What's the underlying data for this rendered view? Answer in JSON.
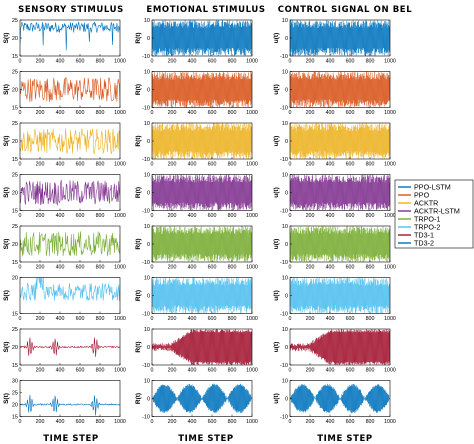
{
  "columns": [
    {
      "title": "SENSORY STIMULUS",
      "xlabel": "TIME STEP"
    },
    {
      "title": "EMOTIONAL STIMULUS",
      "xlabel": "TIME STEP"
    },
    {
      "title": "CONTROL SIGNAL ON BEL",
      "xlabel": "TIME STEP"
    }
  ],
  "legend": [
    {
      "label": "PPO-LSTM",
      "color": "#0072BD"
    },
    {
      "label": "PPO",
      "color": "#D95319"
    },
    {
      "label": "ACKTR",
      "color": "#EDB120"
    },
    {
      "label": "ACKTR-LSTM",
      "color": "#7E2F8E"
    },
    {
      "label": "TRPO-1",
      "color": "#77AC30"
    },
    {
      "label": "TRPO-2",
      "color": "#4DBEEE"
    },
    {
      "label": "TD3-1",
      "color": "#A2142F"
    },
    {
      "label": "TD3-2",
      "color": "#0072BD"
    }
  ],
  "chart_data": {
    "type": "line",
    "x_range": [
      0,
      1000
    ],
    "x_ticks": [
      0,
      200,
      400,
      600,
      800,
      1000
    ],
    "columns_ylabels": [
      "S(t)",
      "R(t)",
      "u(t)"
    ],
    "rows": [
      {
        "series": "PPO-LSTM",
        "color": "#0072BD",
        "panels": [
          {
            "ylabel": "S(t)",
            "ylim": [
              15,
              25
            ],
            "yticks": [
              15,
              20,
              25
            ]
          },
          {
            "ylabel": "R(t)",
            "ylim": [
              -10,
              10
            ],
            "yticks": [
              -10,
              0,
              10
            ]
          },
          {
            "ylabel": "u(t)",
            "ylim": [
              -10,
              10
            ],
            "yticks": [
              -10,
              0,
              10
            ]
          }
        ]
      },
      {
        "series": "PPO",
        "color": "#D95319",
        "panels": [
          {
            "ylabel": "S(t)",
            "ylim": [
              15,
              25
            ],
            "yticks": [
              15,
              20,
              25
            ]
          },
          {
            "ylabel": "R(t)",
            "ylim": [
              -10,
              10
            ],
            "yticks": [
              -10,
              0,
              10
            ]
          },
          {
            "ylabel": "u(t)",
            "ylim": [
              -10,
              10
            ],
            "yticks": [
              -10,
              0,
              10
            ]
          }
        ]
      },
      {
        "series": "ACKTR",
        "color": "#EDB120",
        "panels": [
          {
            "ylabel": "S(t)",
            "ylim": [
              15,
              25
            ],
            "yticks": [
              15,
              20,
              25
            ]
          },
          {
            "ylabel": "R(t)",
            "ylim": [
              -10,
              10
            ],
            "yticks": [
              -10,
              0,
              10
            ]
          },
          {
            "ylabel": "u(t)",
            "ylim": [
              -10,
              10
            ],
            "yticks": [
              -10,
              0,
              10
            ]
          }
        ]
      },
      {
        "series": "ACKTR-LSTM",
        "color": "#7E2F8E",
        "panels": [
          {
            "ylabel": "S(t)",
            "ylim": [
              15,
              25
            ],
            "yticks": [
              15,
              20,
              25
            ]
          },
          {
            "ylabel": "R(t)",
            "ylim": [
              -10,
              10
            ],
            "yticks": [
              -10,
              0,
              10
            ]
          },
          {
            "ylabel": "u(t)",
            "ylim": [
              -10,
              10
            ],
            "yticks": [
              -10,
              0,
              10
            ]
          }
        ]
      },
      {
        "series": "TRPO-1",
        "color": "#77AC30",
        "panels": [
          {
            "ylabel": "S(t)",
            "ylim": [
              15,
              25
            ],
            "yticks": [
              15,
              20,
              25
            ]
          },
          {
            "ylabel": "R(t)",
            "ylim": [
              -10,
              10
            ],
            "yticks": [
              -10,
              0,
              10
            ]
          },
          {
            "ylabel": "u(t)",
            "ylim": [
              -10,
              10
            ],
            "yticks": [
              -10,
              0,
              10
            ]
          }
        ]
      },
      {
        "series": "TRPO-2",
        "color": "#4DBEEE",
        "panels": [
          {
            "ylabel": "S(t)",
            "ylim": [
              15,
              20
            ],
            "yticks": [
              15,
              20
            ]
          },
          {
            "ylabel": "R(t)",
            "ylim": [
              -10,
              10
            ],
            "yticks": [
              -10,
              0,
              10
            ]
          },
          {
            "ylabel": "u(t)",
            "ylim": [
              -10,
              10
            ],
            "yticks": [
              -10,
              0,
              10
            ]
          }
        ]
      },
      {
        "series": "TD3-1",
        "color": "#A2142F",
        "panels": [
          {
            "ylabel": "S(t)",
            "ylim": [
              15,
              25
            ],
            "yticks": [
              15,
              20,
              25
            ]
          },
          {
            "ylabel": "R(t)",
            "ylim": [
              -10,
              10
            ],
            "yticks": [
              -10,
              0,
              10
            ]
          },
          {
            "ylabel": "u(t)",
            "ylim": [
              -10,
              10
            ],
            "yticks": [
              -10,
              0,
              10
            ]
          }
        ]
      },
      {
        "series": "TD3-2",
        "color": "#0072BD",
        "panels": [
          {
            "ylabel": "S(t)",
            "ylim": [
              15,
              30
            ],
            "yticks": [
              15,
              20,
              25,
              30
            ]
          },
          {
            "ylabel": "R(t)",
            "ylim": [
              -10,
              10
            ],
            "yticks": [
              -10,
              0,
              10
            ]
          },
          {
            "ylabel": "u(t)",
            "ylim": [
              -10,
              10
            ],
            "yticks": [
              -10,
              0,
              10
            ]
          }
        ]
      }
    ]
  }
}
